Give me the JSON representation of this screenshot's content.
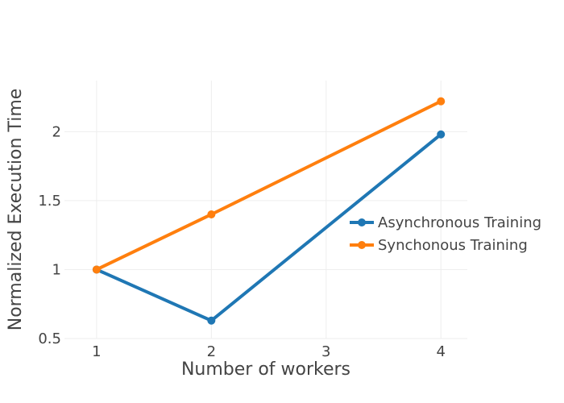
{
  "chart_data": {
    "type": "line",
    "title": "",
    "xlabel": "Number of workers",
    "ylabel": "Normalized Execution Time",
    "x": [
      1,
      2,
      3,
      4
    ],
    "xticks": [
      1,
      2,
      3,
      4
    ],
    "xtick_labels": [
      "1",
      "2",
      "3",
      "4"
    ],
    "xlim": [
      0.72,
      4.23
    ],
    "yticks": [
      0.5,
      1,
      1.5,
      2
    ],
    "ytick_labels": [
      "0.5",
      "1",
      "1.5",
      "2"
    ],
    "ylim": [
      0.5,
      2.37
    ],
    "grid": true,
    "legend_position": "right",
    "series": [
      {
        "name": "Asynchronous Training",
        "color": "#1f77b4",
        "x": [
          1,
          2,
          4
        ],
        "values": [
          1.0,
          0.63,
          1.98
        ]
      },
      {
        "name": "Synchonous Training",
        "color": "#ff7f0e",
        "x": [
          1,
          2,
          4
        ],
        "values": [
          1.0,
          1.4,
          2.22
        ]
      }
    ]
  }
}
